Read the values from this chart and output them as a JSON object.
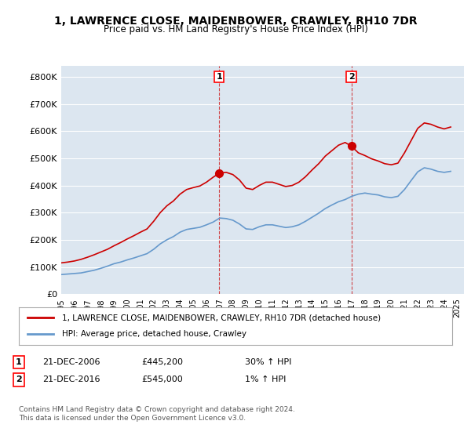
{
  "title": "1, LAWRENCE CLOSE, MAIDENBOWER, CRAWLEY, RH10 7DR",
  "subtitle": "Price paid vs. HM Land Registry's House Price Index (HPI)",
  "ylabel_ticks": [
    "£0",
    "£100K",
    "£200K",
    "£300K",
    "£400K",
    "£500K",
    "£600K",
    "£700K",
    "£800K"
  ],
  "ytick_values": [
    0,
    100000,
    200000,
    300000,
    400000,
    500000,
    600000,
    700000,
    800000
  ],
  "ylim": [
    0,
    840000
  ],
  "xlim_start": 1995.0,
  "xlim_end": 2025.5,
  "background_color": "#dce6f0",
  "plot_bg_color": "#dce6f0",
  "red_color": "#cc0000",
  "blue_color": "#6699cc",
  "marker1_x": 2006.97,
  "marker1_y": 445200,
  "marker2_x": 2016.97,
  "marker2_y": 545000,
  "marker1_label": "1",
  "marker2_label": "2",
  "legend_line1": "1, LAWRENCE CLOSE, MAIDENBOWER, CRAWLEY, RH10 7DR (detached house)",
  "legend_line2": "HPI: Average price, detached house, Crawley",
  "table_row1": [
    "1",
    "21-DEC-2006",
    "£445,200",
    "30% ↑ HPI"
  ],
  "table_row2": [
    "2",
    "21-DEC-2016",
    "£545,000",
    "1% ↑ HPI"
  ],
  "footer": "Contains HM Land Registry data © Crown copyright and database right 2024.\nThis data is licensed under the Open Government Licence v3.0.",
  "hpi_x": [
    1995.0,
    1995.5,
    1996.0,
    1996.5,
    1997.0,
    1997.5,
    1998.0,
    1998.5,
    1999.0,
    1999.5,
    2000.0,
    2000.5,
    2001.0,
    2001.5,
    2002.0,
    2002.5,
    2003.0,
    2003.5,
    2004.0,
    2004.5,
    2005.0,
    2005.5,
    2006.0,
    2006.5,
    2007.0,
    2007.5,
    2008.0,
    2008.5,
    2009.0,
    2009.5,
    2010.0,
    2010.5,
    2011.0,
    2011.5,
    2012.0,
    2012.5,
    2013.0,
    2013.5,
    2014.0,
    2014.5,
    2015.0,
    2015.5,
    2016.0,
    2016.5,
    2017.0,
    2017.5,
    2018.0,
    2018.5,
    2019.0,
    2019.5,
    2020.0,
    2020.5,
    2021.0,
    2021.5,
    2022.0,
    2022.5,
    2023.0,
    2023.5,
    2024.0,
    2024.5
  ],
  "hpi_y": [
    72000,
    74000,
    76000,
    78000,
    83000,
    88000,
    95000,
    103000,
    112000,
    118000,
    126000,
    133000,
    141000,
    149000,
    165000,
    185000,
    200000,
    212000,
    228000,
    238000,
    242000,
    246000,
    255000,
    265000,
    280000,
    278000,
    272000,
    258000,
    240000,
    238000,
    248000,
    255000,
    255000,
    250000,
    245000,
    248000,
    255000,
    268000,
    283000,
    298000,
    315000,
    328000,
    340000,
    348000,
    360000,
    368000,
    372000,
    368000,
    365000,
    358000,
    355000,
    360000,
    385000,
    418000,
    450000,
    465000,
    460000,
    452000,
    448000,
    452000
  ],
  "red_x": [
    1995.0,
    1995.5,
    1996.0,
    1996.5,
    1997.0,
    1997.5,
    1998.0,
    1998.5,
    1999.0,
    1999.5,
    2000.0,
    2000.5,
    2001.0,
    2001.5,
    2002.0,
    2002.5,
    2003.0,
    2003.5,
    2004.0,
    2004.5,
    2005.0,
    2005.5,
    2006.0,
    2006.5,
    2006.97,
    2007.5,
    2008.0,
    2008.5,
    2009.0,
    2009.5,
    2010.0,
    2010.5,
    2011.0,
    2011.5,
    2012.0,
    2012.5,
    2013.0,
    2013.5,
    2014.0,
    2014.5,
    2015.0,
    2015.5,
    2016.0,
    2016.5,
    2016.97,
    2017.5,
    2018.0,
    2018.5,
    2019.0,
    2019.5,
    2020.0,
    2020.5,
    2021.0,
    2021.5,
    2022.0,
    2022.5,
    2023.0,
    2023.5,
    2024.0,
    2024.5
  ],
  "red_y": [
    115000,
    118000,
    122000,
    128000,
    136000,
    145000,
    155000,
    165000,
    178000,
    190000,
    203000,
    215000,
    228000,
    240000,
    268000,
    300000,
    325000,
    343000,
    368000,
    385000,
    392000,
    398000,
    412000,
    430000,
    445200,
    448000,
    440000,
    420000,
    390000,
    385000,
    400000,
    412000,
    412000,
    404000,
    396000,
    400000,
    412000,
    432000,
    457000,
    480000,
    508000,
    528000,
    548000,
    558000,
    545000,
    520000,
    510000,
    498000,
    490000,
    480000,
    476000,
    482000,
    520000,
    565000,
    610000,
    630000,
    625000,
    615000,
    608000,
    615000
  ]
}
